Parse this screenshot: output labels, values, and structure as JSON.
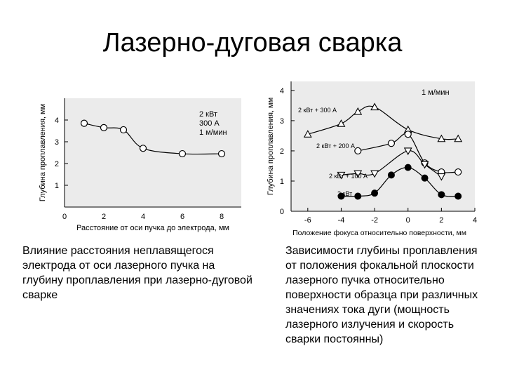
{
  "slide": {
    "title": "Лазерно-дуговая сварка",
    "caption_left": "Влияние расстояния неплавящегося электрода от оси лазерного пучка на глубину проплавления при лазерно-дуговой сварке",
    "caption_right": "Зависимости глубины проплавления от положения фокальной плоскости лазерного пучка относительно поверхности образца при различных значениях тока дуги (мощность лазерного излучения и скорость сварки постоянны)"
  },
  "chart_data": [
    {
      "type": "scatter",
      "title": "",
      "xlabel": "Расстояние от оси пучка до электрода, мм",
      "ylabel": "Глубина проплавления, мм",
      "xlim": [
        0,
        9
      ],
      "ylim": [
        0,
        5
      ],
      "x_ticks": [
        "0",
        "2",
        "4",
        "6",
        "8"
      ],
      "y_ticks": [
        "1",
        "2",
        "3",
        "4"
      ],
      "annotation": [
        "2 кВт",
        "300 А",
        "1 м/мин"
      ],
      "series": [
        {
          "x": [
            1,
            2,
            3,
            4,
            6,
            8
          ],
          "y": [
            3.85,
            3.65,
            3.55,
            2.7,
            2.45,
            2.45
          ],
          "marker": "circle-open"
        }
      ],
      "grid": false
    },
    {
      "type": "scatter",
      "title": "",
      "xlabel": "Положение фокуса относительно поверхности, мм",
      "ylabel": "Глубина проплавления, мм",
      "xlim": [
        -7,
        4
      ],
      "ylim": [
        0,
        4.3
      ],
      "x_ticks": [
        "-6",
        "-4",
        "-2",
        "0",
        "2",
        "4"
      ],
      "y_ticks": [
        "0",
        "1",
        "2",
        "3",
        "4"
      ],
      "annotation": "1 м/мин",
      "series": [
        {
          "name": "2 кВт + 300 А",
          "marker": "triangle-up-open",
          "x": [
            -6,
            -4,
            -3,
            -2,
            0,
            2,
            3
          ],
          "y": [
            2.55,
            2.9,
            3.3,
            3.45,
            2.7,
            2.4,
            2.4
          ]
        },
        {
          "name": "2 кВт + 200 А",
          "marker": "circle-open",
          "x": [
            -3,
            -1,
            0,
            1,
            2,
            3
          ],
          "y": [
            2.0,
            2.25,
            2.55,
            1.6,
            1.3,
            1.3
          ]
        },
        {
          "name": "2 кВт + 100 А",
          "marker": "triangle-down-open",
          "x": [
            -4,
            -3,
            -2,
            0,
            1,
            2
          ],
          "y": [
            1.2,
            1.25,
            1.25,
            2.0,
            1.55,
            1.15
          ]
        },
        {
          "name": "2 кВт",
          "marker": "circle-filled",
          "x": [
            -4,
            -3,
            -2,
            -1,
            0,
            1,
            2,
            3
          ],
          "y": [
            0.5,
            0.5,
            0.6,
            1.2,
            1.45,
            1.1,
            0.55,
            0.5
          ]
        }
      ],
      "grid": false
    }
  ]
}
